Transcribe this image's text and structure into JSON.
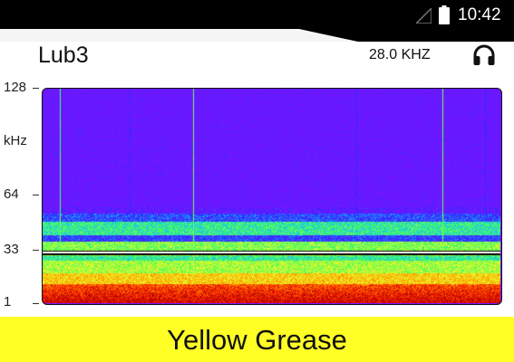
{
  "status_bar": {
    "time": "10:42",
    "icons": [
      "signal-icon",
      "battery-icon"
    ]
  },
  "header": {
    "title": "Lub3",
    "frequency": "28.0 KHZ",
    "audio_icon": "headphones-icon"
  },
  "spectrogram": {
    "y_axis": {
      "unit_label": "kHz",
      "ticks": [
        "128",
        "64",
        "33",
        "1"
      ],
      "range": [
        1,
        128
      ]
    },
    "marker_frequency_khz": 28.0,
    "colormap": [
      "#7a14ff",
      "#2a2aff",
      "#18c0ff",
      "#3dff5a",
      "#e8ff30",
      "#ffb000",
      "#ff2a00",
      "#b00000"
    ]
  },
  "result": {
    "label": "Yellow Grease",
    "color": "#ffff26"
  }
}
